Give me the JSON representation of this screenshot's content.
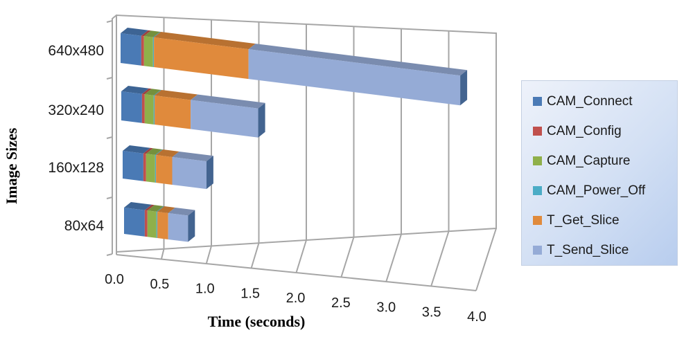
{
  "chart_data": {
    "type": "bar",
    "orientation": "horizontal",
    "stacked": true,
    "three_d": true,
    "title": "",
    "xlabel": "Time (seconds)",
    "ylabel": "Image Sizes",
    "xlim": [
      0.0,
      4.0
    ],
    "x_ticks": [
      "0.0",
      "0.5",
      "1.0",
      "1.5",
      "2.0",
      "2.5",
      "3.0",
      "3.5",
      "4.0"
    ],
    "categories": [
      "80x64",
      "160x128",
      "320x240",
      "640x480"
    ],
    "series": [
      {
        "name": "CAM_Connect",
        "color": "#4a7ab5",
        "values": [
          0.23,
          0.23,
          0.23,
          0.23
        ]
      },
      {
        "name": "CAM_Config",
        "color": "#c0504d",
        "values": [
          0.03,
          0.03,
          0.03,
          0.03
        ]
      },
      {
        "name": "CAM_Capture",
        "color": "#8fb04a",
        "values": [
          0.1,
          0.1,
          0.1,
          0.1
        ]
      },
      {
        "name": "CAM_Power_Off",
        "color": "#4bacc6",
        "values": [
          0.01,
          0.01,
          0.01,
          0.01
        ]
      },
      {
        "name": "T_Get_Slice",
        "color": "#e08a3c",
        "values": [
          0.12,
          0.18,
          0.4,
          1.05
        ]
      },
      {
        "name": "T_Send_Slice",
        "color": "#95abd6",
        "values": [
          0.22,
          0.38,
          0.75,
          2.35
        ]
      }
    ],
    "legend_position": "right",
    "grid": true
  },
  "legend": {
    "items": [
      {
        "label": "CAM_Connect",
        "color": "#4a7ab5"
      },
      {
        "label": "CAM_Config",
        "color": "#c0504d"
      },
      {
        "label": "CAM_Capture",
        "color": "#8fb04a"
      },
      {
        "label": "CAM_Power_Off",
        "color": "#4bacc6"
      },
      {
        "label": "T_Get_Slice",
        "color": "#e08a3c"
      },
      {
        "label": "T_Send_Slice",
        "color": "#95abd6"
      }
    ]
  }
}
